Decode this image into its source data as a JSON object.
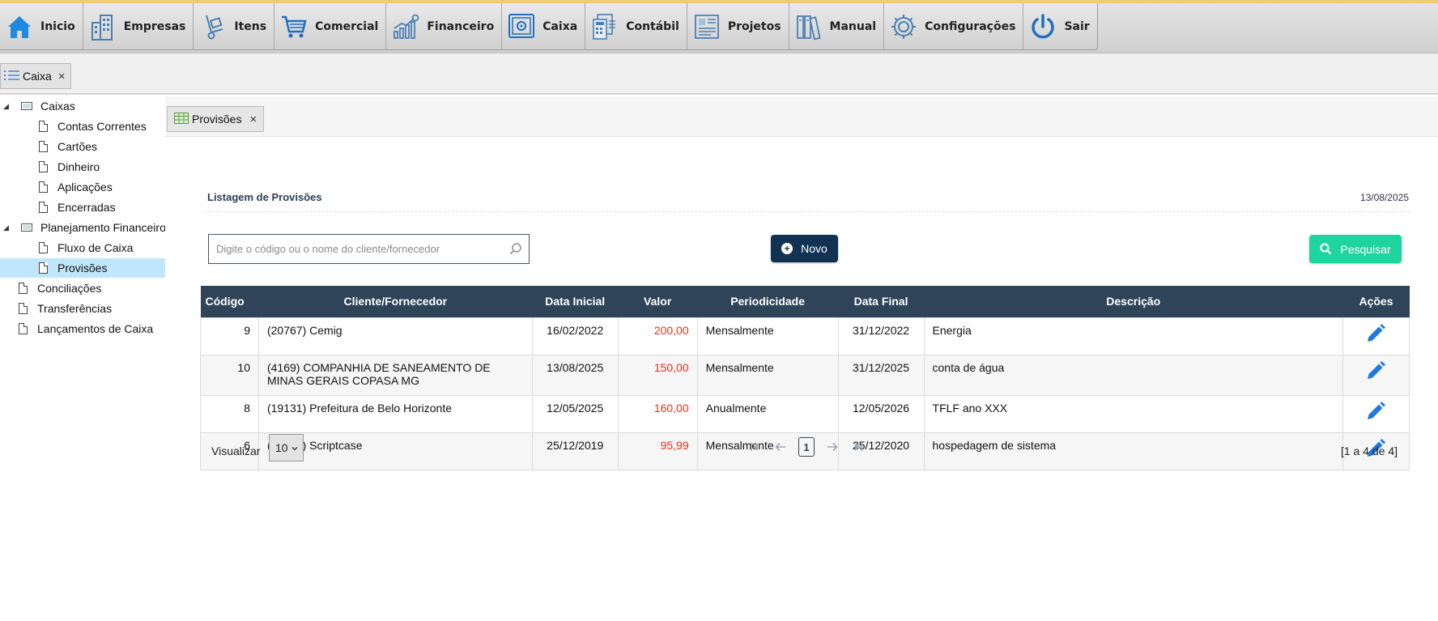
{
  "menu": {
    "items": [
      {
        "label": "Inicio",
        "icon": "home-icon"
      },
      {
        "label": "Empresas",
        "icon": "buildings-icon"
      },
      {
        "label": "Itens",
        "icon": "hand-truck-icon"
      },
      {
        "label": "Comercial",
        "icon": "shopping-cart-icon"
      },
      {
        "label": "Financeiro",
        "icon": "bar-chart-money-icon"
      },
      {
        "label": "Caixa",
        "icon": "safe-icon"
      },
      {
        "label": "Contábil",
        "icon": "calculator-documents-icon"
      },
      {
        "label": "Projetos",
        "icon": "project-board-icon"
      },
      {
        "label": "Manual",
        "icon": "books-icon"
      },
      {
        "label": "Configurações",
        "icon": "gear-icon"
      },
      {
        "label": "Sair",
        "icon": "power-icon"
      }
    ]
  },
  "outer_tab": {
    "label": "Caixa",
    "close": "×"
  },
  "tree": {
    "caixas": "Caixas",
    "contas_correntes": "Contas Correntes",
    "cartoes": "Cartões",
    "dinheiro": "Dinheiro",
    "aplicacoes": "Aplicações",
    "encerradas": "Encerradas",
    "planejamento": "Planejamento Financeiro",
    "fluxo_caixa": "Fluxo de Caixa",
    "provisoes": "Provisões",
    "conciliacoes": "Conciliações",
    "transferencias": "Transferências",
    "lancamentos": "Lançamentos de Caixa"
  },
  "inner_tab": {
    "label": "Provisões",
    "close": "×"
  },
  "page": {
    "title": "Listagem de Provisões",
    "date": "13/08/2025",
    "search_placeholder": "Digite o código ou o nome do cliente/fornecedor",
    "new_label": "Novo",
    "search_label": "Pesquisar"
  },
  "table": {
    "headers": [
      "Código",
      "Cliente/Fornecedor",
      "Data Inicial",
      "Valor",
      "Periodicidade",
      "Data Final",
      "Descrição",
      "Ações"
    ],
    "rows": [
      {
        "codigo": "9",
        "cliente": "(20767) Cemig",
        "data_inicial": "16/02/2022",
        "valor": "200,00",
        "periodicidade": "Mensalmente",
        "data_final": "31/12/2022",
        "descricao": "Energia"
      },
      {
        "codigo": "10",
        "cliente": "(4169) COMPANHIA DE SANEAMENTO DE MINAS GERAIS COPASA MG",
        "data_inicial": "13/08/2025",
        "valor": "150,00",
        "periodicidade": "Mensalmente",
        "data_final": "31/12/2025",
        "descricao": "conta de água"
      },
      {
        "codigo": "8",
        "cliente": "(19131) Prefeitura de Belo Horizonte",
        "data_inicial": "12/05/2025",
        "valor": "160,00",
        "periodicidade": "Anualmente",
        "data_final": "12/05/2026",
        "descricao": "TFLF ano XXX"
      },
      {
        "codigo": "6",
        "cliente": "(19787) Scriptcase",
        "data_inicial": "25/12/2019",
        "valor": "95,99",
        "periodicidade": "Mensalmente",
        "data_final": "25/12/2020",
        "descricao": "hospedagem de sistema"
      }
    ]
  },
  "pagination": {
    "visualizar_label": "Visualizar",
    "page_size": "10",
    "current_page": "1",
    "info": "[1 a 4 de 4]"
  },
  "colors": {
    "header_bg": "#2f4459",
    "novo_bg": "#123252",
    "pesquisar_bg": "#1ed59f",
    "valor_text": "#e8311a",
    "selected_bg": "#bfe6fb"
  }
}
